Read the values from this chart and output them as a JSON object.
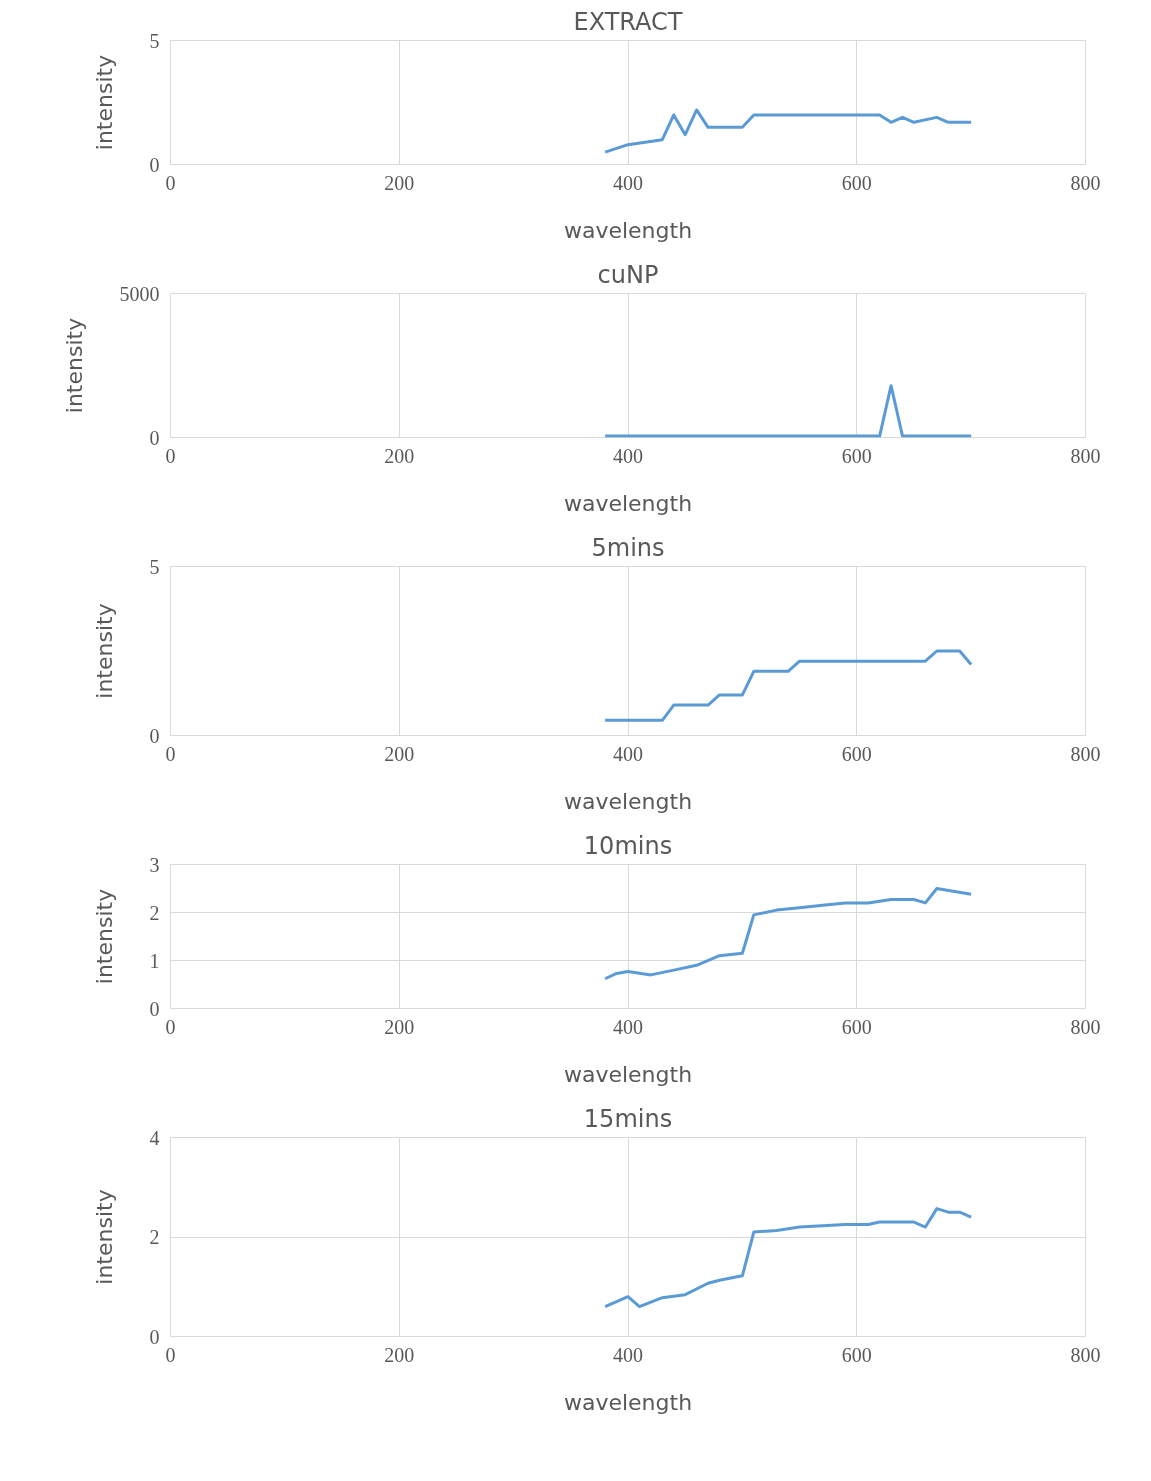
{
  "chart_data": [
    {
      "type": "line",
      "title": "EXTRACT",
      "xlabel": "wavelength",
      "ylabel": "intensity",
      "xlim": [
        0,
        800
      ],
      "xticks": [
        0,
        200,
        400,
        600,
        800
      ],
      "ylim": [
        0,
        5
      ],
      "yticks": [
        0,
        5
      ],
      "grid": true,
      "series": [
        {
          "color": "#5b9bd5",
          "x": [
            380,
            400,
            430,
            440,
            450,
            460,
            470,
            500,
            510,
            620,
            630,
            640,
            650,
            670,
            680,
            700
          ],
          "values": [
            0.5,
            0.8,
            1.0,
            2.0,
            1.2,
            2.2,
            1.5,
            1.5,
            2.0,
            2.0,
            1.7,
            1.9,
            1.7,
            1.9,
            1.7,
            1.7
          ]
        }
      ]
    },
    {
      "type": "line",
      "title": "cuNP",
      "xlabel": "wavelength",
      "ylabel": "intensity",
      "xlim": [
        0,
        800
      ],
      "xticks": [
        0,
        200,
        400,
        600,
        800
      ],
      "ylim": [
        0,
        5000
      ],
      "yticks": [
        0,
        5000
      ],
      "grid": true,
      "series": [
        {
          "color": "#5b9bd5",
          "x": [
            380,
            620,
            630,
            640,
            700
          ],
          "values": [
            50,
            50,
            1800,
            50,
            50
          ]
        }
      ]
    },
    {
      "type": "line",
      "title": "5mins",
      "xlabel": "wavelength",
      "ylabel": "intensity",
      "xlim": [
        0,
        800
      ],
      "xticks": [
        0,
        200,
        400,
        600,
        800
      ],
      "ylim": [
        0,
        5
      ],
      "yticks": [
        0,
        5
      ],
      "grid": true,
      "series": [
        {
          "color": "#5b9bd5",
          "x": [
            380,
            430,
            440,
            470,
            480,
            500,
            510,
            540,
            550,
            660,
            670,
            690,
            700
          ],
          "values": [
            0.45,
            0.45,
            0.9,
            0.9,
            1.2,
            1.2,
            1.9,
            1.9,
            2.2,
            2.2,
            2.5,
            2.5,
            2.1
          ]
        }
      ]
    },
    {
      "type": "line",
      "title": "10mins",
      "xlabel": "wavelength",
      "ylabel": "intensity",
      "xlim": [
        0,
        800
      ],
      "xticks": [
        0,
        200,
        400,
        600,
        800
      ],
      "ylim": [
        0,
        3
      ],
      "yticks": [
        0,
        1,
        2,
        3
      ],
      "grid": true,
      "series": [
        {
          "color": "#5b9bd5",
          "x": [
            380,
            390,
            400,
            420,
            440,
            460,
            480,
            500,
            510,
            530,
            550,
            570,
            590,
            610,
            630,
            650,
            660,
            670,
            700
          ],
          "values": [
            0.62,
            0.73,
            0.77,
            0.7,
            0.8,
            0.9,
            1.1,
            1.15,
            1.95,
            2.05,
            2.1,
            2.15,
            2.2,
            2.2,
            2.27,
            2.27,
            2.2,
            2.5,
            2.38
          ]
        }
      ]
    },
    {
      "type": "line",
      "title": "15mins",
      "xlabel": "wavelength",
      "ylabel": "intensity",
      "xlim": [
        0,
        800
      ],
      "xticks": [
        0,
        200,
        400,
        600,
        800
      ],
      "ylim": [
        0,
        4
      ],
      "yticks": [
        0,
        2,
        4
      ],
      "grid": true,
      "series": [
        {
          "color": "#5b9bd5",
          "x": [
            380,
            400,
            410,
            430,
            450,
            470,
            480,
            500,
            510,
            530,
            550,
            590,
            610,
            620,
            650,
            660,
            670,
            680,
            690,
            700
          ],
          "values": [
            0.6,
            0.8,
            0.6,
            0.78,
            0.84,
            1.07,
            1.13,
            1.22,
            2.1,
            2.13,
            2.2,
            2.25,
            2.25,
            2.3,
            2.3,
            2.2,
            2.57,
            2.5,
            2.5,
            2.4
          ]
        }
      ]
    }
  ]
}
